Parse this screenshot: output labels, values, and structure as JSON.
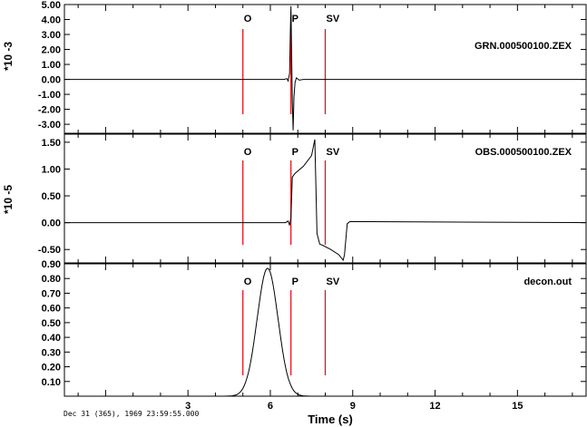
{
  "chart_data": [
    {
      "type": "line",
      "title": "GRN.000500100.ZEX",
      "ylabel": "*10 -3",
      "xlim": [
        -1.5,
        17.5
      ],
      "ylim": [
        -3.6,
        5.0
      ],
      "yticks": [
        "5.00",
        "4.00",
        "3.00",
        "2.00",
        "1.00",
        "0.00",
        "-1.00",
        "-2.00",
        "-3.00"
      ],
      "ytick_values": [
        5,
        4,
        3,
        2,
        1,
        0,
        -1,
        -2,
        -3
      ],
      "markers": [
        {
          "label": "O",
          "t": 5.0
        },
        {
          "label": "P",
          "t": 6.75
        },
        {
          "label": "SV",
          "t": 8.0
        }
      ],
      "series": [
        {
          "x": [
            -1.5,
            6.5,
            6.6,
            6.65,
            6.7,
            6.73,
            6.75,
            6.78,
            6.8,
            6.83,
            6.86,
            6.9,
            6.95,
            7.05,
            7.2,
            17.5
          ],
          "y": [
            0,
            0,
            0.05,
            -0.1,
            0.4,
            3.4,
            4.9,
            1.0,
            -1.5,
            -3.4,
            -1.2,
            -0.2,
            0.1,
            -0.05,
            0,
            0
          ]
        }
      ]
    },
    {
      "type": "line",
      "title": "OBS.000500100.ZEX",
      "ylabel": "*10 -5",
      "xlim": [
        -1.5,
        17.5
      ],
      "ylim": [
        -0.75,
        1.65
      ],
      "yticks": [
        "1.50",
        "1.00",
        "0.50",
        "0.00",
        "-0.50"
      ],
      "ytick_values": [
        1.5,
        1.0,
        0.5,
        0.0,
        -0.5
      ],
      "markers": [
        {
          "label": "O",
          "t": 5.0
        },
        {
          "label": "P",
          "t": 6.75
        },
        {
          "label": "SV",
          "t": 8.0
        }
      ],
      "series": [
        {
          "x": [
            -1.5,
            6.55,
            6.65,
            6.7,
            6.75,
            6.8,
            6.9,
            7.2,
            7.5,
            7.62,
            7.65,
            7.7,
            7.8,
            7.9,
            8.2,
            8.5,
            8.65,
            8.7,
            8.8,
            8.9,
            17.5
          ],
          "y": [
            0,
            0,
            0.03,
            -0.05,
            0.1,
            0.85,
            0.92,
            1.05,
            1.25,
            1.55,
            0.9,
            -0.2,
            -0.4,
            -0.42,
            -0.5,
            -0.6,
            -0.7,
            -0.6,
            -0.02,
            0.02,
            0
          ]
        }
      ]
    },
    {
      "type": "line",
      "title": "decon.out",
      "xlabel": "Time (s)",
      "xlim": [
        -1.5,
        17.5
      ],
      "ylim": [
        0.0,
        0.9
      ],
      "yticks": [
        "0.90",
        "0.80",
        "0.70",
        "0.60",
        "0.50",
        "0.40",
        "0.30",
        "0.20",
        "0.10"
      ],
      "ytick_values": [
        0.9,
        0.8,
        0.7,
        0.6,
        0.5,
        0.4,
        0.3,
        0.2,
        0.1
      ],
      "xticks": [
        "3",
        "6",
        "9",
        "12",
        "15"
      ],
      "xtick_values": [
        3,
        6,
        9,
        12,
        15
      ],
      "markers": [
        {
          "label": "O",
          "t": 5.0
        },
        {
          "label": "P",
          "t": 6.75
        },
        {
          "label": "SV",
          "t": 8.0
        }
      ],
      "gaussian": {
        "center": 5.9,
        "amplitude": 0.87,
        "sigma": 0.38
      }
    }
  ],
  "footer": {
    "date": "Dec 31 (365), 1969 23:59:55.000"
  }
}
